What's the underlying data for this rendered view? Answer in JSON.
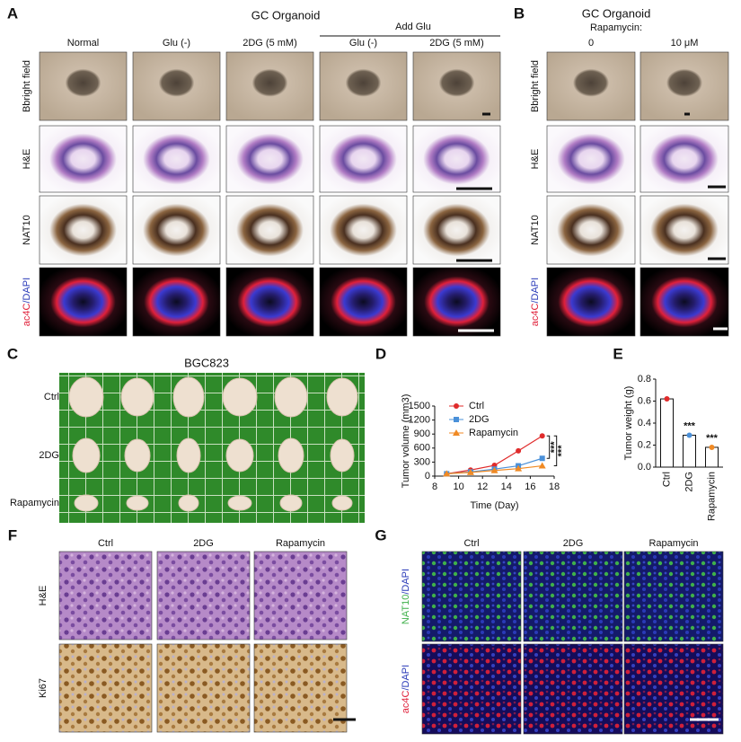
{
  "panels": {
    "A": {
      "label": "A",
      "title": "GC Organoid",
      "group_label": "Add Glu",
      "columns": [
        "Normal",
        "Glu (-)",
        "2DG (5 mM)",
        "Glu (-)",
        "2DG (5 mM)"
      ],
      "rows": [
        "Bbright field",
        "H&E",
        "NAT10",
        [
          "ac4C",
          "/DAPI"
        ]
      ]
    },
    "B": {
      "label": "B",
      "title": "GC Organoid",
      "treatment": "Rapamycin:",
      "columns": [
        "0",
        "10 μM"
      ],
      "rows": [
        "Bbright field",
        "H&E",
        "NAT10",
        [
          "ac4C",
          "/DAPI"
        ]
      ]
    },
    "C": {
      "label": "C",
      "title": "BGC823",
      "rows": [
        "Ctrl",
        "2DG",
        "Rapamycin"
      ]
    },
    "D": {
      "label": "D"
    },
    "E": {
      "label": "E"
    },
    "F": {
      "label": "F",
      "columns": [
        "Ctrl",
        "2DG",
        "Rapamycin"
      ],
      "rows": [
        "H&E",
        "Ki67"
      ]
    },
    "G": {
      "label": "G",
      "columns": [
        "Ctrl",
        "2DG",
        "Rapamycin"
      ],
      "rows": [
        [
          "NAT10",
          "/DAPI"
        ],
        [
          "ac4C",
          "/DAPI"
        ]
      ]
    }
  },
  "chart_data": [
    {
      "type": "line",
      "y_label": "Tumor volume (mm3)",
      "x_label": "Time (Day)",
      "x": [
        9,
        11,
        13,
        15,
        17
      ],
      "series": [
        {
          "name": "Ctrl",
          "color": "#e02b2b",
          "marker": "circle",
          "values": [
            50,
            130,
            230,
            540,
            860
          ]
        },
        {
          "name": "2DG",
          "color": "#4a90d9",
          "marker": "square",
          "values": [
            50,
            90,
            150,
            220,
            380
          ]
        },
        {
          "name": "Rapamycin",
          "color": "#f08a24",
          "marker": "triangle",
          "values": [
            50,
            80,
            120,
            160,
            220
          ]
        }
      ],
      "xlim": [
        8,
        18
      ],
      "xticks": [
        8,
        10,
        12,
        14,
        16,
        18
      ],
      "ylim": [
        0,
        1500
      ],
      "yticks": [
        0,
        300,
        600,
        900,
        1200,
        1500
      ],
      "legend": "upper left",
      "annotations": [
        "***",
        "***"
      ]
    },
    {
      "type": "bar",
      "y_label": "Tumor weight (g)",
      "categories": [
        "Ctrl",
        "2DG",
        "Rapamycin"
      ],
      "values": [
        0.62,
        0.29,
        0.18
      ],
      "colors": [
        "#e02b2b",
        "#4a90d9",
        "#f08a24"
      ],
      "ylim": [
        0,
        0.8
      ],
      "yticks": [
        {
          "value": 0,
          "label": "0.0"
        },
        0.2,
        0.4,
        0.6,
        0.8
      ],
      "annotations": [
        "***",
        "***"
      ]
    }
  ]
}
